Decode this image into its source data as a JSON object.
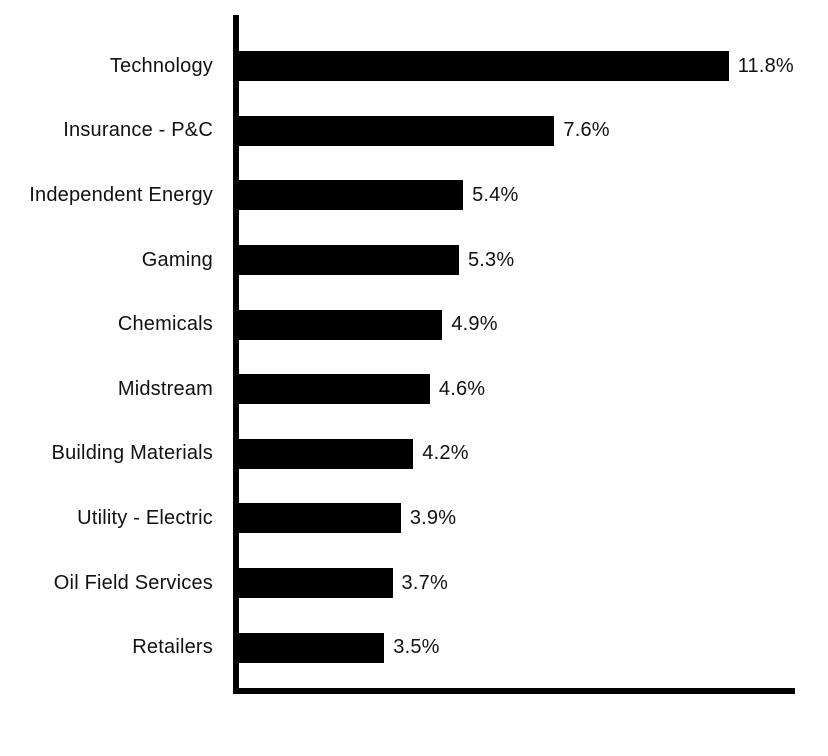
{
  "chart_data": {
    "type": "bar",
    "orientation": "horizontal",
    "categories": [
      "Technology",
      "Insurance - P&C",
      "Independent Energy",
      "Gaming",
      "Chemicals",
      "Midstream",
      "Building Materials",
      "Utility - Electric",
      "Oil Field Services",
      "Retailers"
    ],
    "values": [
      11.8,
      7.6,
      5.4,
      5.3,
      4.9,
      4.6,
      4.2,
      3.9,
      3.7,
      3.5
    ],
    "value_labels": [
      "11.8%",
      "7.6%",
      "5.4%",
      "5.3%",
      "4.9%",
      "4.6%",
      "4.2%",
      "3.9%",
      "3.7%",
      "3.5%"
    ],
    "xlim": [
      0,
      13.4
    ],
    "grid": false,
    "legend": false,
    "bar_color": "#000000",
    "axis_color": "#000000",
    "text_color": "#111111",
    "background": "#ffffff"
  }
}
